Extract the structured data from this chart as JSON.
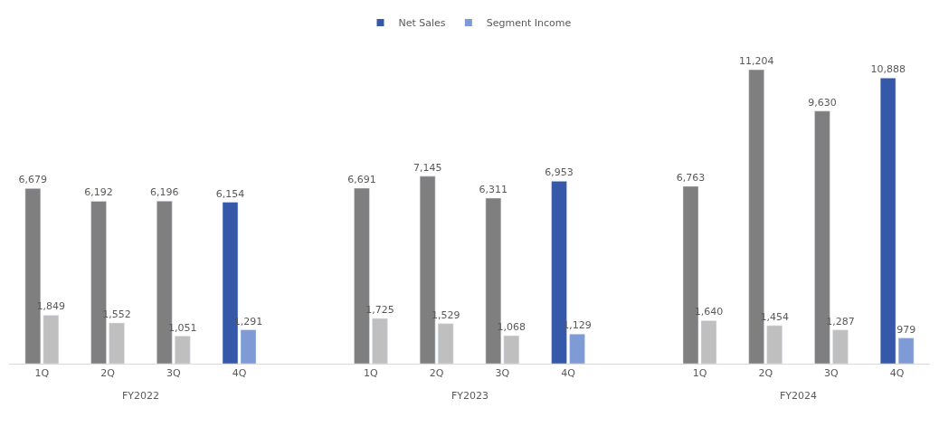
{
  "chart_data": {
    "type": "bar",
    "categories": [
      "1Q",
      "2Q",
      "3Q",
      "4Q",
      null,
      "1Q",
      "2Q",
      "3Q",
      "4Q",
      null,
      "1Q",
      "2Q",
      "3Q",
      "4Q"
    ],
    "series": [
      {
        "name": "Net Sales",
        "color": "#3558a8",
        "colors": [
          "#7f7f7f",
          "#7f7f7f",
          "#7f7f7f",
          "#3558a8",
          null,
          "#7f7f7f",
          "#7f7f7f",
          "#7f7f7f",
          "#3558a8",
          null,
          "#7f7f7f",
          "#7f7f7f",
          "#7f7f7f",
          "#3558a8"
        ],
        "values": [
          6679,
          6192,
          6196,
          6154,
          null,
          6691,
          7145,
          6311,
          6953,
          null,
          6763,
          11204,
          9630,
          10888
        ],
        "value_labels": [
          "6,679",
          "6,192",
          "6,196",
          "6,154",
          null,
          "6,691",
          "7,145",
          "6,311",
          "6,953",
          null,
          "6,763",
          "11,204",
          "9,630",
          "10,888"
        ]
      },
      {
        "name": "Segment Income",
        "color": "#7f9bd6",
        "colors": [
          "#bfbfbf",
          "#bfbfbf",
          "#bfbfbf",
          "#7f9bd6",
          null,
          "#bfbfbf",
          "#bfbfbf",
          "#bfbfbf",
          "#7f9bd6",
          null,
          "#bfbfbf",
          "#bfbfbf",
          "#bfbfbf",
          "#7f9bd6"
        ],
        "values": [
          1849,
          1552,
          1051,
          1291,
          null,
          1725,
          1529,
          1068,
          1129,
          null,
          1640,
          1454,
          1287,
          979
        ],
        "value_labels": [
          "1,849",
          "1,552",
          "1,051",
          "1,291",
          null,
          "1,725",
          "1,529",
          "1,068",
          "1,129",
          null,
          "1,640",
          "1,454",
          "1,287",
          "979"
        ]
      }
    ],
    "annotations": [
      "FY2022",
      "FY2023",
      "FY2024"
    ],
    "legend": "top"
  }
}
